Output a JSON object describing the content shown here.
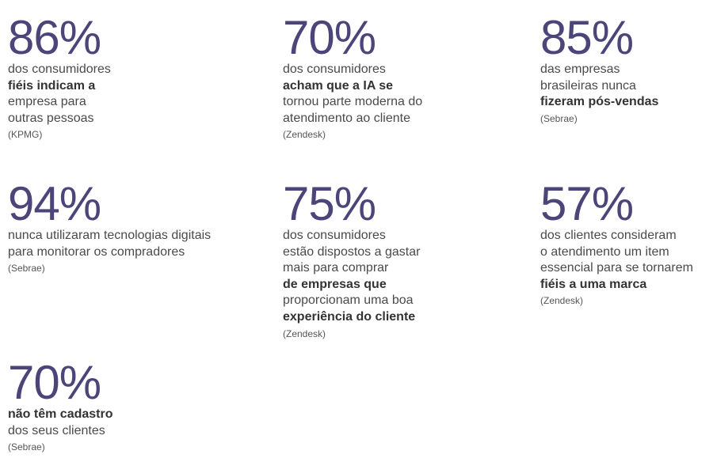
{
  "stats": [
    {
      "value": "86%",
      "lines": [
        {
          "text": "dos consumidores",
          "bold": false
        },
        {
          "text": "fiéis indicam a",
          "bold": true
        },
        {
          "text": "empresa para",
          "bold": false
        },
        {
          "text": "outras pessoas",
          "bold": false
        }
      ],
      "source": "(KPMG)"
    },
    {
      "value": "70%",
      "lines": [
        {
          "text": "dos consumidores",
          "bold": false
        },
        {
          "text": "acham que a IA se",
          "bold": true
        },
        {
          "text": "tornou parte moderna do",
          "bold": false
        },
        {
          "text": "atendimento ao cliente",
          "bold": false
        }
      ],
      "source": "(Zendesk)"
    },
    {
      "value": "85%",
      "lines": [
        {
          "text": "das empresas",
          "bold": false
        },
        {
          "text": "brasileiras nunca",
          "bold": false
        },
        {
          "text": "fizeram pós-vendas",
          "bold": true
        }
      ],
      "source": "(Sebrae)"
    },
    {
      "value": "94%",
      "lines": [
        {
          "text": "nunca utilizaram tecnologias digitais",
          "bold": false
        },
        {
          "text": "para monitorar os compradores",
          "bold": false
        }
      ],
      "source": "(Sebrae)"
    },
    {
      "value": "75%",
      "lines": [
        {
          "text": "dos consumidores",
          "bold": false
        },
        {
          "text": "estão dispostos a gastar",
          "bold": false
        },
        {
          "text": "mais para comprar",
          "bold": false
        },
        {
          "text": "de empresas que",
          "bold": true
        },
        {
          "text": "proporcionam uma boa",
          "bold": false
        },
        {
          "text": "experiência do cliente",
          "bold": true
        }
      ],
      "source": "(Zendesk)"
    },
    {
      "value": "57%",
      "lines": [
        {
          "text": "dos clientes consideram",
          "bold": false
        },
        {
          "text": "o atendimento um item",
          "bold": false
        },
        {
          "text": "essencial para se tornarem",
          "bold": false
        },
        {
          "text": "fiéis a uma marca",
          "bold": true
        }
      ],
      "source": "(Zendesk)"
    },
    {
      "value": "70%",
      "lines": [
        {
          "text": "não têm cadastro",
          "bold": true
        },
        {
          "text": "dos seus clientes",
          "bold": false
        }
      ],
      "source": "(Sebrae)"
    }
  ]
}
